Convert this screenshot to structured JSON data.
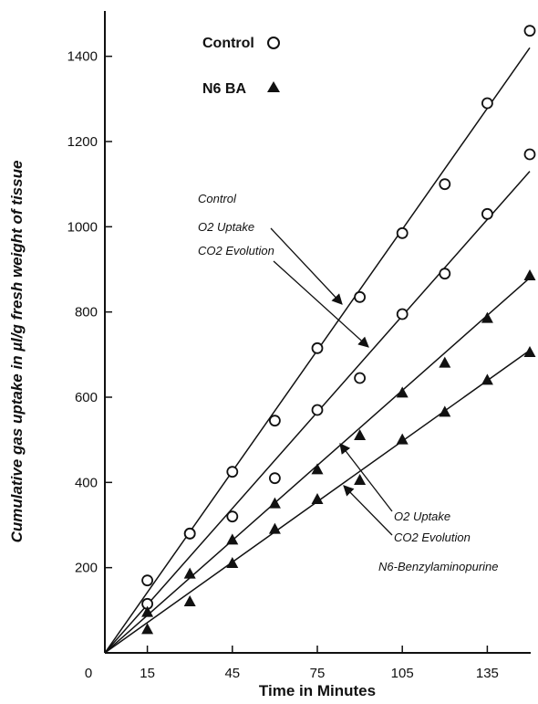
{
  "chart_data": {
    "type": "scatter",
    "title": "",
    "xlabel": "Time in Minutes",
    "ylabel": "Cumulative gas uptake in µl/g fresh weight of tissue",
    "xlim": [
      0,
      150
    ],
    "ylim": [
      0,
      1500
    ],
    "x_ticks": [
      "0",
      "15",
      "45",
      "75",
      "105",
      "135"
    ],
    "x_tick_values": [
      0,
      15,
      45,
      75,
      105,
      135
    ],
    "y_ticks": [
      "200",
      "400",
      "600",
      "800",
      "1000",
      "1200",
      "1400"
    ],
    "y_tick_values": [
      200,
      400,
      600,
      800,
      1000,
      1200,
      1400
    ],
    "grid": false,
    "legend_position": "top",
    "legend": [
      {
        "label": "Control",
        "marker": "open-circle"
      },
      {
        "label": "N6 BA",
        "marker": "filled-triangle"
      }
    ],
    "series": [
      {
        "group": "control",
        "marker": "open-circle",
        "x": [
          15,
          30,
          45,
          60,
          75,
          90,
          105,
          120,
          135,
          150
        ],
        "y": [
          170,
          280,
          425,
          545,
          715,
          835,
          985,
          1100,
          1290,
          1460
        ],
        "fit": [
          [
            0,
            0
          ],
          [
            150,
            1420
          ]
        ]
      },
      {
        "group": "control",
        "marker": "open-circle",
        "x": [
          15,
          30,
          45,
          60,
          75,
          90,
          105,
          120,
          135,
          150
        ],
        "y": [
          115,
          280,
          320,
          410,
          570,
          645,
          795,
          890,
          1030,
          1170
        ],
        "fit": [
          [
            0,
            0
          ],
          [
            150,
            1130
          ]
        ]
      },
      {
        "group": "n6ba",
        "marker": "filled-triangle",
        "x": [
          15,
          30,
          45,
          60,
          75,
          90,
          105,
          120,
          135,
          150
        ],
        "y": [
          95,
          185,
          265,
          350,
          430,
          510,
          610,
          680,
          785,
          885
        ],
        "fit": [
          [
            0,
            0
          ],
          [
            150,
            880
          ]
        ]
      },
      {
        "group": "n6ba",
        "marker": "filled-triangle",
        "x": [
          15,
          30,
          45,
          60,
          75,
          90,
          105,
          120,
          135,
          150
        ],
        "y": [
          55,
          120,
          210,
          290,
          360,
          405,
          500,
          565,
          640,
          705
        ],
        "fit": [
          [
            0,
            0
          ],
          [
            150,
            710
          ]
        ]
      }
    ],
    "annotations": {
      "control_title": "Control",
      "control_o2": "O2 Uptake",
      "control_co2": "CO2 Evolution",
      "n6_o2": "O2 Uptake",
      "n6_co2": "CO2 Evolution",
      "n6_title": "N6-Benzylaminopurine"
    }
  }
}
